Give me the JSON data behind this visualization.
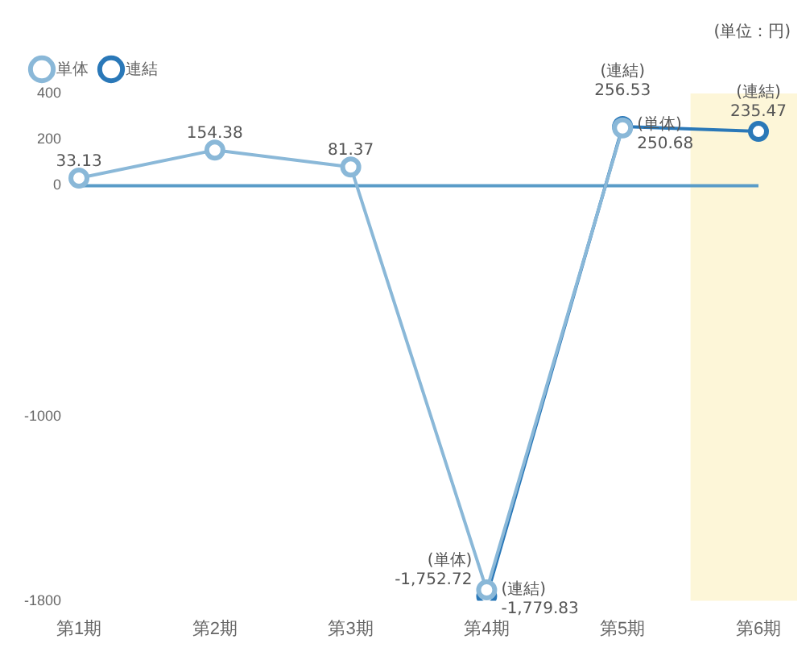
{
  "chart_data": {
    "type": "line",
    "categories": [
      "第1期",
      "第2期",
      "第3期",
      "第4期",
      "第5期",
      "第6期"
    ],
    "series": [
      {
        "name": "単体",
        "color": "#8ab8d8",
        "values": [
          33.13,
          154.38,
          81.37,
          -1752.72,
          250.68,
          null
        ],
        "value_labels": [
          "33.13",
          "154.38",
          "81.37",
          "(単体) -1,752.72",
          "(単体) 250.68",
          null
        ]
      },
      {
        "name": "連結",
        "color": "#2a78b8",
        "values": [
          null,
          null,
          null,
          -1779.83,
          256.53,
          235.47
        ],
        "value_labels": [
          null,
          null,
          null,
          "(連結) -1,779.83",
          "(連結) 256.53",
          "(連結) 235.47"
        ]
      }
    ],
    "ylim": [
      -1800,
      400
    ],
    "yticks": [
      -1800,
      -1000,
      0,
      200,
      400
    ],
    "ref_lines": [
      {
        "axis": "y",
        "value": 0,
        "color": "#5a9cc8"
      }
    ],
    "bands": [
      {
        "axis": "x",
        "from": "第6期",
        "to": "第6期",
        "color": "#fdf6d8"
      }
    ],
    "annotations": [
      "(単位：円)"
    ],
    "legend": "top left",
    "marker": "circle",
    "line_style": "solid",
    "grid": false
  }
}
